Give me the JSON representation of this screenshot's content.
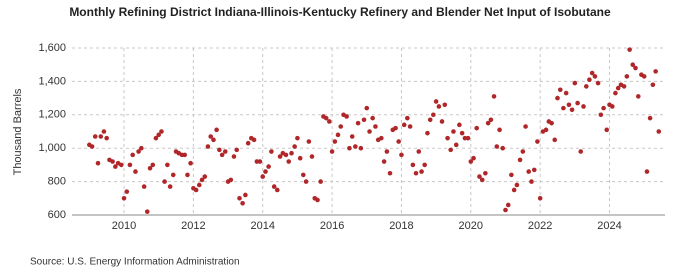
{
  "chart_data": {
    "type": "scatter",
    "title": "Monthly Refining District Indiana-Illinois-Kentucky Refinery and Blender Net Input of Isobutane",
    "y_label": "Thousand Barrels",
    "source": "Source: U.S. Energy Information Administration",
    "color": "#b0272a",
    "grid": true,
    "xlim": [
      2008.5,
      2025.6
    ],
    "xticks": [
      2010,
      2012,
      2014,
      2016,
      2018,
      2020,
      2022,
      2024
    ],
    "ylim": [
      600,
      1600
    ],
    "yticks": [
      600,
      800,
      {
        "value": 1000,
        "label": "1,000"
      },
      {
        "value": 1200,
        "label": "1,200"
      },
      {
        "value": 1400,
        "label": "1,400"
      },
      {
        "value": 1600,
        "label": "1,600"
      }
    ],
    "x": [
      2009.0,
      2009.08,
      2009.17,
      2009.25,
      2009.33,
      2009.42,
      2009.5,
      2009.58,
      2009.67,
      2009.75,
      2009.83,
      2009.92,
      2010.0,
      2010.08,
      2010.17,
      2010.25,
      2010.33,
      2010.42,
      2010.5,
      2010.58,
      2010.67,
      2010.75,
      2010.83,
      2010.92,
      2011.0,
      2011.08,
      2011.17,
      2011.25,
      2011.33,
      2011.42,
      2011.5,
      2011.58,
      2011.67,
      2011.75,
      2011.83,
      2011.92,
      2012.0,
      2012.08,
      2012.17,
      2012.25,
      2012.33,
      2012.42,
      2012.5,
      2012.58,
      2012.67,
      2012.75,
      2012.83,
      2012.92,
      2013.0,
      2013.08,
      2013.17,
      2013.25,
      2013.33,
      2013.42,
      2013.5,
      2013.58,
      2013.67,
      2013.75,
      2013.83,
      2013.92,
      2014.0,
      2014.08,
      2014.17,
      2014.25,
      2014.33,
      2014.42,
      2014.5,
      2014.58,
      2014.67,
      2014.75,
      2014.83,
      2014.92,
      2015.0,
      2015.08,
      2015.17,
      2015.25,
      2015.33,
      2015.42,
      2015.5,
      2015.58,
      2015.67,
      2015.75,
      2015.83,
      2015.92,
      2016.0,
      2016.08,
      2016.17,
      2016.25,
      2016.33,
      2016.42,
      2016.5,
      2016.58,
      2016.67,
      2016.75,
      2016.83,
      2016.92,
      2017.0,
      2017.08,
      2017.17,
      2017.25,
      2017.33,
      2017.42,
      2017.5,
      2017.58,
      2017.67,
      2017.75,
      2017.83,
      2017.92,
      2018.0,
      2018.08,
      2018.17,
      2018.25,
      2018.33,
      2018.42,
      2018.5,
      2018.58,
      2018.67,
      2018.75,
      2018.83,
      2018.92,
      2019.0,
      2019.08,
      2019.17,
      2019.25,
      2019.33,
      2019.42,
      2019.5,
      2019.58,
      2019.67,
      2019.75,
      2019.83,
      2019.92,
      2020.0,
      2020.08,
      2020.17,
      2020.25,
      2020.33,
      2020.42,
      2020.5,
      2020.58,
      2020.67,
      2020.75,
      2020.83,
      2020.92,
      2021.0,
      2021.08,
      2021.17,
      2021.25,
      2021.33,
      2021.42,
      2021.5,
      2021.58,
      2021.67,
      2021.75,
      2021.83,
      2021.92,
      2022.0,
      2022.08,
      2022.17,
      2022.25,
      2022.33,
      2022.42,
      2022.5,
      2022.58,
      2022.67,
      2022.75,
      2022.83,
      2022.92,
      2023.0,
      2023.08,
      2023.17,
      2023.25,
      2023.33,
      2023.42,
      2023.5,
      2023.58,
      2023.67,
      2023.75,
      2023.83,
      2023.92,
      2024.0,
      2024.08,
      2024.17,
      2024.25,
      2024.33,
      2024.42,
      2024.5,
      2024.58,
      2024.67,
      2024.75,
      2024.83,
      2024.92,
      2025.0,
      2025.08,
      2025.17,
      2025.25,
      2025.33,
      2025.42
    ],
    "values": [
      1020,
      1010,
      1070,
      910,
      1070,
      1100,
      1060,
      930,
      920,
      890,
      910,
      900,
      700,
      740,
      900,
      960,
      860,
      980,
      1000,
      770,
      620,
      880,
      900,
      1060,
      1080,
      1100,
      800,
      900,
      770,
      840,
      980,
      970,
      960,
      960,
      840,
      910,
      760,
      750,
      780,
      810,
      830,
      1010,
      1070,
      1050,
      1110,
      990,
      960,
      980,
      800,
      810,
      950,
      990,
      700,
      670,
      720,
      1030,
      1060,
      1050,
      920,
      920,
      830,
      860,
      890,
      980,
      770,
      750,
      950,
      970,
      960,
      920,
      970,
      1010,
      1060,
      940,
      840,
      800,
      1040,
      950,
      700,
      690,
      800,
      1190,
      1180,
      1160,
      980,
      1040,
      1080,
      1130,
      1200,
      1190,
      1000,
      1070,
      1010,
      1150,
      1000,
      1170,
      1240,
      1100,
      1180,
      1130,
      1050,
      1060,
      920,
      980,
      850,
      1110,
      1120,
      1040,
      960,
      1140,
      1180,
      1130,
      900,
      850,
      980,
      860,
      900,
      1090,
      1170,
      1200,
      1280,
      1250,
      1160,
      1260,
      1060,
      990,
      1100,
      1020,
      1140,
      1090,
      1060,
      1060,
      920,
      940,
      1120,
      830,
      810,
      850,
      1150,
      1170,
      1310,
      1010,
      1110,
      1000,
      630,
      660,
      840,
      750,
      780,
      930,
      980,
      1130,
      860,
      800,
      870,
      1040,
      700,
      1100,
      1110,
      1160,
      1150,
      1050,
      1300,
      1350,
      1240,
      1330,
      1260,
      1230,
      1390,
      1270,
      980,
      1250,
      1370,
      1410,
      1450,
      1430,
      1390,
      1200,
      1240,
      1110,
      1260,
      1250,
      1330,
      1360,
      1380,
      1370,
      1430,
      1590,
      1500,
      1480,
      1310,
      1440,
      1430,
      860,
      1180,
      1380,
      1460,
      1100
    ]
  }
}
